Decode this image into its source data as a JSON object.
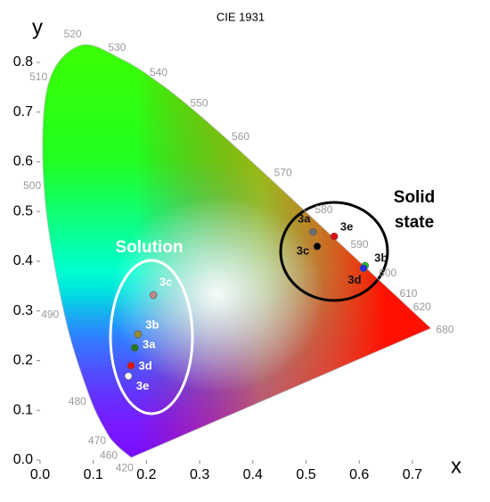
{
  "chart_data": {
    "type": "scatter",
    "title": "CIE 1931",
    "x_label": "x",
    "y_label": "y",
    "xlim": [
      0,
      0.75
    ],
    "ylim": [
      0,
      0.85
    ],
    "xticks": [
      {
        "value": 0,
        "label": "0.0"
      },
      {
        "value": 0.1,
        "label": "0.1"
      },
      {
        "value": 0.2,
        "label": "0.2"
      },
      {
        "value": 0.3,
        "label": "0.3"
      },
      {
        "value": 0.4,
        "label": "0.4"
      },
      {
        "value": 0.5,
        "label": "0.5"
      },
      {
        "value": 0.6,
        "label": "0.6"
      },
      {
        "value": 0.7,
        "label": "0.7"
      }
    ],
    "yticks": [
      {
        "value": 0,
        "label": "0.0"
      },
      {
        "value": 0.1,
        "label": "0.1"
      },
      {
        "value": 0.2,
        "label": "0.2"
      },
      {
        "value": 0.3,
        "label": "0.3"
      },
      {
        "value": 0.4,
        "label": "0.4"
      },
      {
        "value": 0.5,
        "label": "0.5"
      },
      {
        "value": 0.6,
        "label": "0.6"
      },
      {
        "value": 0.7,
        "label": "0.7"
      },
      {
        "value": 0.8,
        "label": "0.8"
      }
    ],
    "spectral_locus": {
      "wavelengths": [
        "420",
        "460",
        "470",
        "480",
        "490",
        "500",
        "510",
        "520",
        "530",
        "540",
        "550",
        "560",
        "570",
        "580",
        "590",
        "600",
        "610",
        "620",
        "680"
      ],
      "x": [
        0.1714,
        0.144,
        0.1241,
        0.0913,
        0.0454,
        0.0082,
        0.0139,
        0.0743,
        0.1547,
        0.2296,
        0.3016,
        0.3731,
        0.4441,
        0.5125,
        0.5752,
        0.627,
        0.6658,
        0.6915,
        0.7347
      ],
      "y": [
        0.0051,
        0.0297,
        0.0578,
        0.1327,
        0.295,
        0.5384,
        0.7502,
        0.8338,
        0.8059,
        0.7543,
        0.6923,
        0.6245,
        0.5547,
        0.4866,
        0.4242,
        0.3725,
        0.334,
        0.3083,
        0.2653
      ]
    },
    "series": [
      {
        "name": "Solution",
        "labels": [
          "3c",
          "3b",
          "3a",
          "3d",
          "3e"
        ],
        "x": [
          0.213,
          0.184,
          0.178,
          0.171,
          0.166
        ],
        "y": [
          0.332,
          0.253,
          0.226,
          0.19,
          0.169
        ],
        "colors": [
          "#c08a8a",
          "#9a8a30",
          "#1f7a1f",
          "#e01010",
          "#ffffff"
        ]
      },
      {
        "name": "Solid state",
        "labels": [
          "3a",
          "3e",
          "3c",
          "3b",
          "3d"
        ],
        "x": [
          0.513,
          0.553,
          0.521,
          0.611,
          0.608
        ],
        "y": [
          0.459,
          0.45,
          0.43,
          0.391,
          0.386
        ],
        "colors": [
          "#6e6e6e",
          "#e01010",
          "#000000",
          "#20c020",
          "#2030e0"
        ]
      }
    ]
  }
}
